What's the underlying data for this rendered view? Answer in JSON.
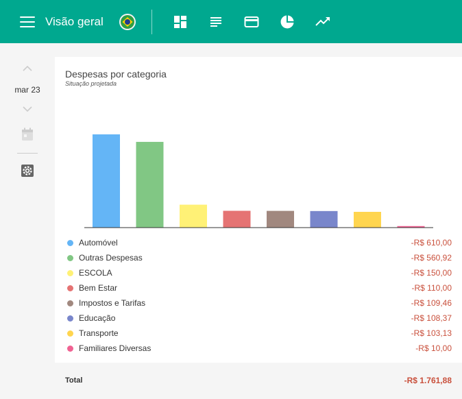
{
  "header": {
    "title": "Visão geral",
    "nav_icons": [
      "dashboard-icon",
      "list-icon",
      "card-icon",
      "pie-chart-icon",
      "trending-icon"
    ]
  },
  "sidebar": {
    "month": "mar 23"
  },
  "card": {
    "title": "Despesas por categoria",
    "subtitle": "Situação projetada"
  },
  "chart_data": {
    "type": "bar",
    "title": "Despesas por categoria",
    "subtitle": "Situação projetada",
    "categories": [
      "Automóvel",
      "Outras Despesas",
      "ESCOLA",
      "Bem Estar",
      "Impostos e Tarifas",
      "Educação",
      "Transporte",
      "Familiares Diversas"
    ],
    "values": [
      610.0,
      560.92,
      150.0,
      110.0,
      109.46,
      108.37,
      103.13,
      10.0
    ],
    "colors": [
      "#64b5f6",
      "#81c784",
      "#fff176",
      "#e57373",
      "#a1887f",
      "#7986cb",
      "#ffd54f",
      "#f06292"
    ],
    "ylim": [
      0,
      610
    ]
  },
  "legend": [
    {
      "name": "Automóvel",
      "value": "-R$ 610,00",
      "color": "#64b5f6"
    },
    {
      "name": "Outras Despesas",
      "value": "-R$ 560,92",
      "color": "#81c784"
    },
    {
      "name": "ESCOLA",
      "value": "-R$ 150,00",
      "color": "#fff176"
    },
    {
      "name": "Bem Estar",
      "value": "-R$ 110,00",
      "color": "#e57373"
    },
    {
      "name": "Impostos e Tarifas",
      "value": "-R$ 109,46",
      "color": "#a1887f"
    },
    {
      "name": "Educação",
      "value": "-R$ 108,37",
      "color": "#7986cb"
    },
    {
      "name": "Transporte",
      "value": "-R$ 103,13",
      "color": "#ffd54f"
    },
    {
      "name": "Familiares Diversas",
      "value": "-R$ 10,00",
      "color": "#f06292"
    }
  ],
  "total": {
    "label": "Total",
    "value": "-R$ 1.761,88"
  },
  "colors": {
    "header": "#00a88f",
    "negative": "#c9503c"
  }
}
